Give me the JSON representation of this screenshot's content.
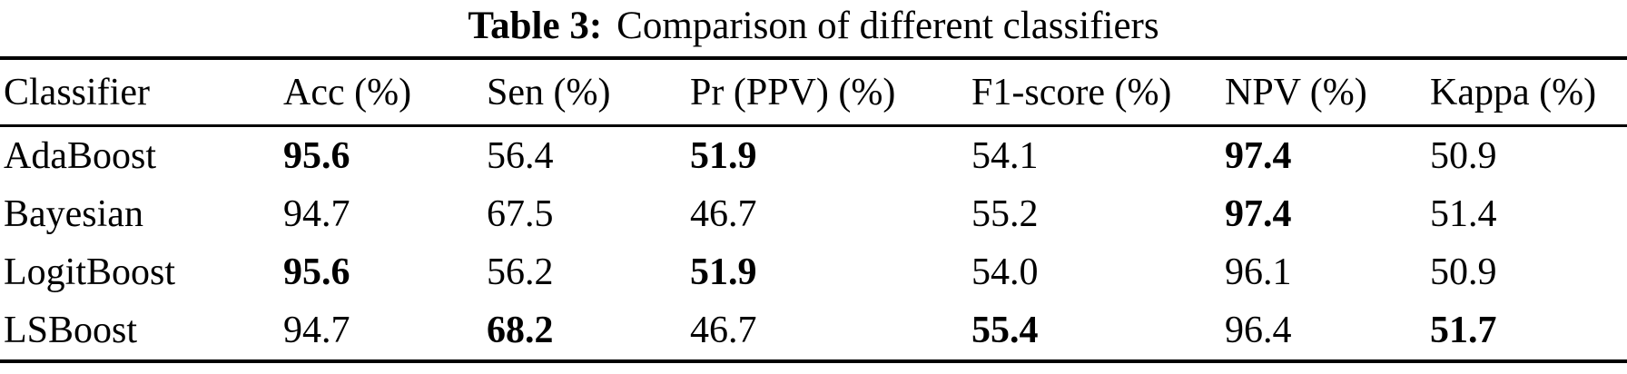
{
  "caption": {
    "label": "Table 3:",
    "text": "Comparison of different classifiers"
  },
  "table": {
    "headers": [
      "Classifier",
      "Acc (%)",
      "Sen (%)",
      "Pr (PPV) (%)",
      "F1-score (%)",
      "NPV (%)",
      "Kappa (%)"
    ],
    "rows": [
      {
        "classifier": "AdaBoost",
        "cells": [
          {
            "value": "95.6",
            "bold": true
          },
          {
            "value": "56.4",
            "bold": false
          },
          {
            "value": "51.9",
            "bold": true
          },
          {
            "value": "54.1",
            "bold": false
          },
          {
            "value": "97.4",
            "bold": true
          },
          {
            "value": "50.9",
            "bold": false
          }
        ]
      },
      {
        "classifier": "Bayesian",
        "cells": [
          {
            "value": "94.7",
            "bold": false
          },
          {
            "value": "67.5",
            "bold": false
          },
          {
            "value": "46.7",
            "bold": false
          },
          {
            "value": "55.2",
            "bold": false
          },
          {
            "value": "97.4",
            "bold": true
          },
          {
            "value": "51.4",
            "bold": false
          }
        ]
      },
      {
        "classifier": "LogitBoost",
        "cells": [
          {
            "value": "95.6",
            "bold": true
          },
          {
            "value": "56.2",
            "bold": false
          },
          {
            "value": "51.9",
            "bold": true
          },
          {
            "value": "54.0",
            "bold": false
          },
          {
            "value": "96.1",
            "bold": false
          },
          {
            "value": "50.9",
            "bold": false
          }
        ]
      },
      {
        "classifier": "LSBoost",
        "cells": [
          {
            "value": "94.7",
            "bold": false
          },
          {
            "value": "68.2",
            "bold": true
          },
          {
            "value": "46.7",
            "bold": false
          },
          {
            "value": "55.4",
            "bold": true
          },
          {
            "value": "96.4",
            "bold": false
          },
          {
            "value": "51.7",
            "bold": true
          }
        ]
      }
    ]
  },
  "colors": {
    "text": "#000000",
    "background": "#ffffff",
    "rule": "#000000"
  }
}
